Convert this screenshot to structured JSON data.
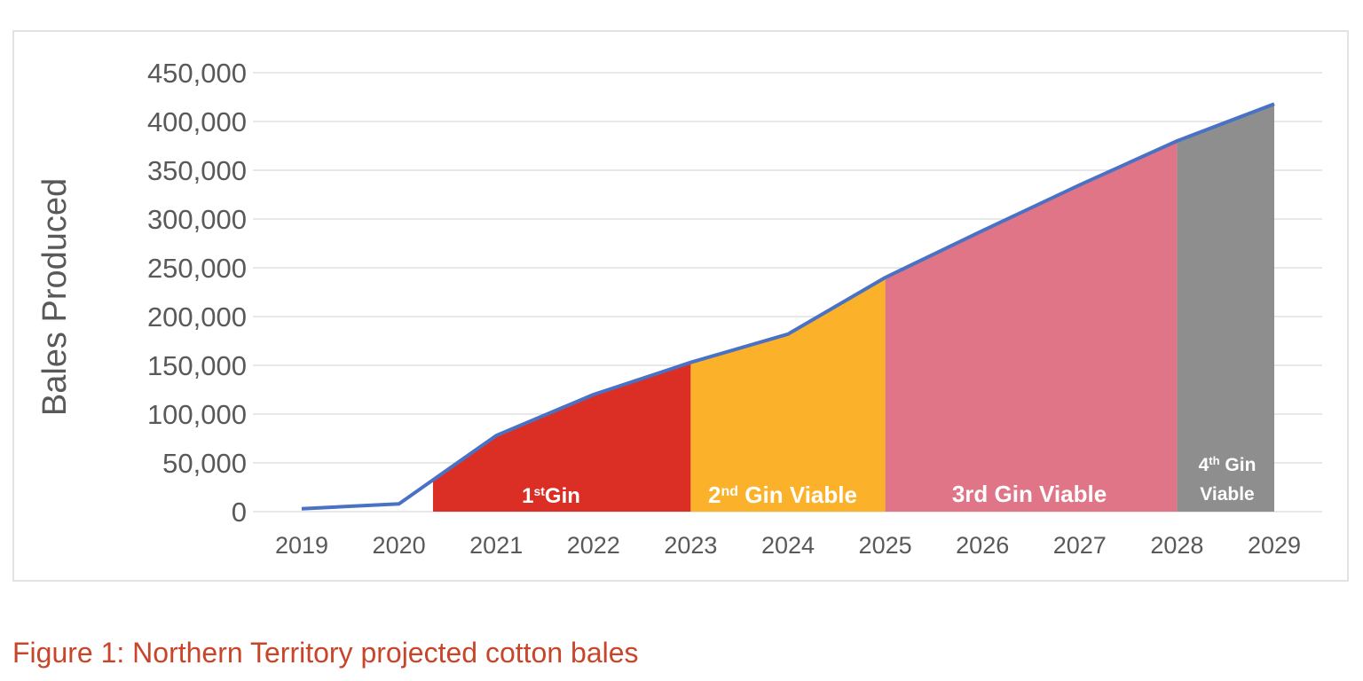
{
  "chart_data": {
    "type": "area",
    "ylabel": "Bales Produced",
    "xlabel": "",
    "categories": [
      "2019",
      "2020",
      "2021",
      "2022",
      "2023",
      "2024",
      "2025",
      "2026",
      "2027",
      "2028",
      "2029"
    ],
    "ylim": [
      0,
      450000
    ],
    "yticks": [
      0,
      50000,
      100000,
      150000,
      200000,
      250000,
      300000,
      350000,
      400000,
      450000
    ],
    "ytick_labels": [
      "0",
      "50,000",
      "100,000",
      "150,000",
      "200,000",
      "250,000",
      "300,000",
      "350,000",
      "400,000",
      "450,000"
    ],
    "grid": true,
    "series": [
      {
        "values": [
          3000,
          8000,
          78000,
          120000,
          153000,
          182000,
          240000,
          288000,
          335000,
          380000,
          418000
        ],
        "color": "#4a72c4"
      }
    ],
    "regions": [
      {
        "label_main": "1",
        "label_sup": "st",
        "label_rest": "Gin",
        "start": "2020.35",
        "end": "2023",
        "color": "#db2f26"
      },
      {
        "label_main": "2",
        "label_sup": "nd",
        "label_rest": " Gin Viable",
        "start": "2023",
        "end": "2025",
        "color": "#fbb12a"
      },
      {
        "label_main": "3rd Gin Viable",
        "label_sup": "",
        "label_rest": "",
        "start": "2025",
        "end": "2028",
        "color": "#e07587"
      },
      {
        "label_main": "4",
        "label_sup": "th",
        "label_rest": " Gin",
        "label_line2": "Viable",
        "start": "2028",
        "end": "2029",
        "color": "#8e8e8e"
      }
    ]
  },
  "caption": "Figure 1: Northern Territory projected cotton bales"
}
